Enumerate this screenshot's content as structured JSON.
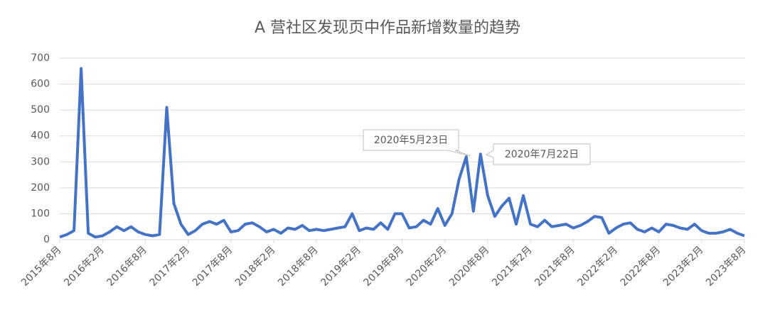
{
  "chart_data": {
    "type": "line",
    "title": "A 营社区发现页中作品新增数量的趋势",
    "categories": [
      "2015年8月",
      null,
      null,
      null,
      null,
      null,
      "2016年2月",
      null,
      null,
      null,
      null,
      null,
      "2016年8月",
      null,
      null,
      null,
      null,
      null,
      "2017年2月",
      null,
      null,
      null,
      null,
      null,
      "2017年8月",
      null,
      null,
      null,
      null,
      null,
      "2018年2月",
      null,
      null,
      null,
      null,
      null,
      "2018年8月",
      null,
      null,
      null,
      null,
      null,
      "2019年2月",
      null,
      null,
      null,
      null,
      null,
      "2019年8月",
      null,
      null,
      null,
      null,
      null,
      "2020年2月",
      null,
      null,
      null,
      null,
      null,
      "2020年8月",
      null,
      null,
      null,
      null,
      null,
      "2021年2月",
      null,
      null,
      null,
      null,
      null,
      "2021年8月",
      null,
      null,
      null,
      null,
      null,
      "2022年2月",
      null,
      null,
      null,
      null,
      null,
      "2022年8月",
      null,
      null,
      null,
      null,
      null,
      "2023年2月",
      null,
      null,
      null,
      null,
      null,
      "2023年8月"
    ],
    "series": [
      {
        "name": "作品新增数量",
        "color": "#4472c4",
        "values": [
          10,
          20,
          35,
          660,
          25,
          10,
          15,
          30,
          50,
          35,
          50,
          30,
          20,
          15,
          20,
          510,
          140,
          60,
          20,
          35,
          60,
          70,
          60,
          75,
          30,
          35,
          60,
          65,
          50,
          30,
          40,
          25,
          45,
          40,
          55,
          35,
          40,
          35,
          40,
          45,
          50,
          100,
          35,
          45,
          40,
          65,
          40,
          100,
          100,
          45,
          50,
          75,
          60,
          120,
          55,
          100,
          235,
          320,
          110,
          330,
          170,
          90,
          130,
          160,
          60,
          170,
          60,
          50,
          75,
          50,
          55,
          60,
          45,
          55,
          70,
          90,
          85,
          25,
          45,
          60,
          65,
          40,
          30,
          45,
          30,
          60,
          55,
          45,
          40,
          60,
          35,
          25,
          25,
          30,
          40,
          25,
          15
        ]
      }
    ],
    "annotations": [
      "2020年5月23日",
      "2020年7月22日"
    ],
    "ylim": [
      0,
      700
    ],
    "yticks": [
      0,
      100,
      200,
      300,
      400,
      500,
      600,
      700
    ],
    "grid": true
  }
}
